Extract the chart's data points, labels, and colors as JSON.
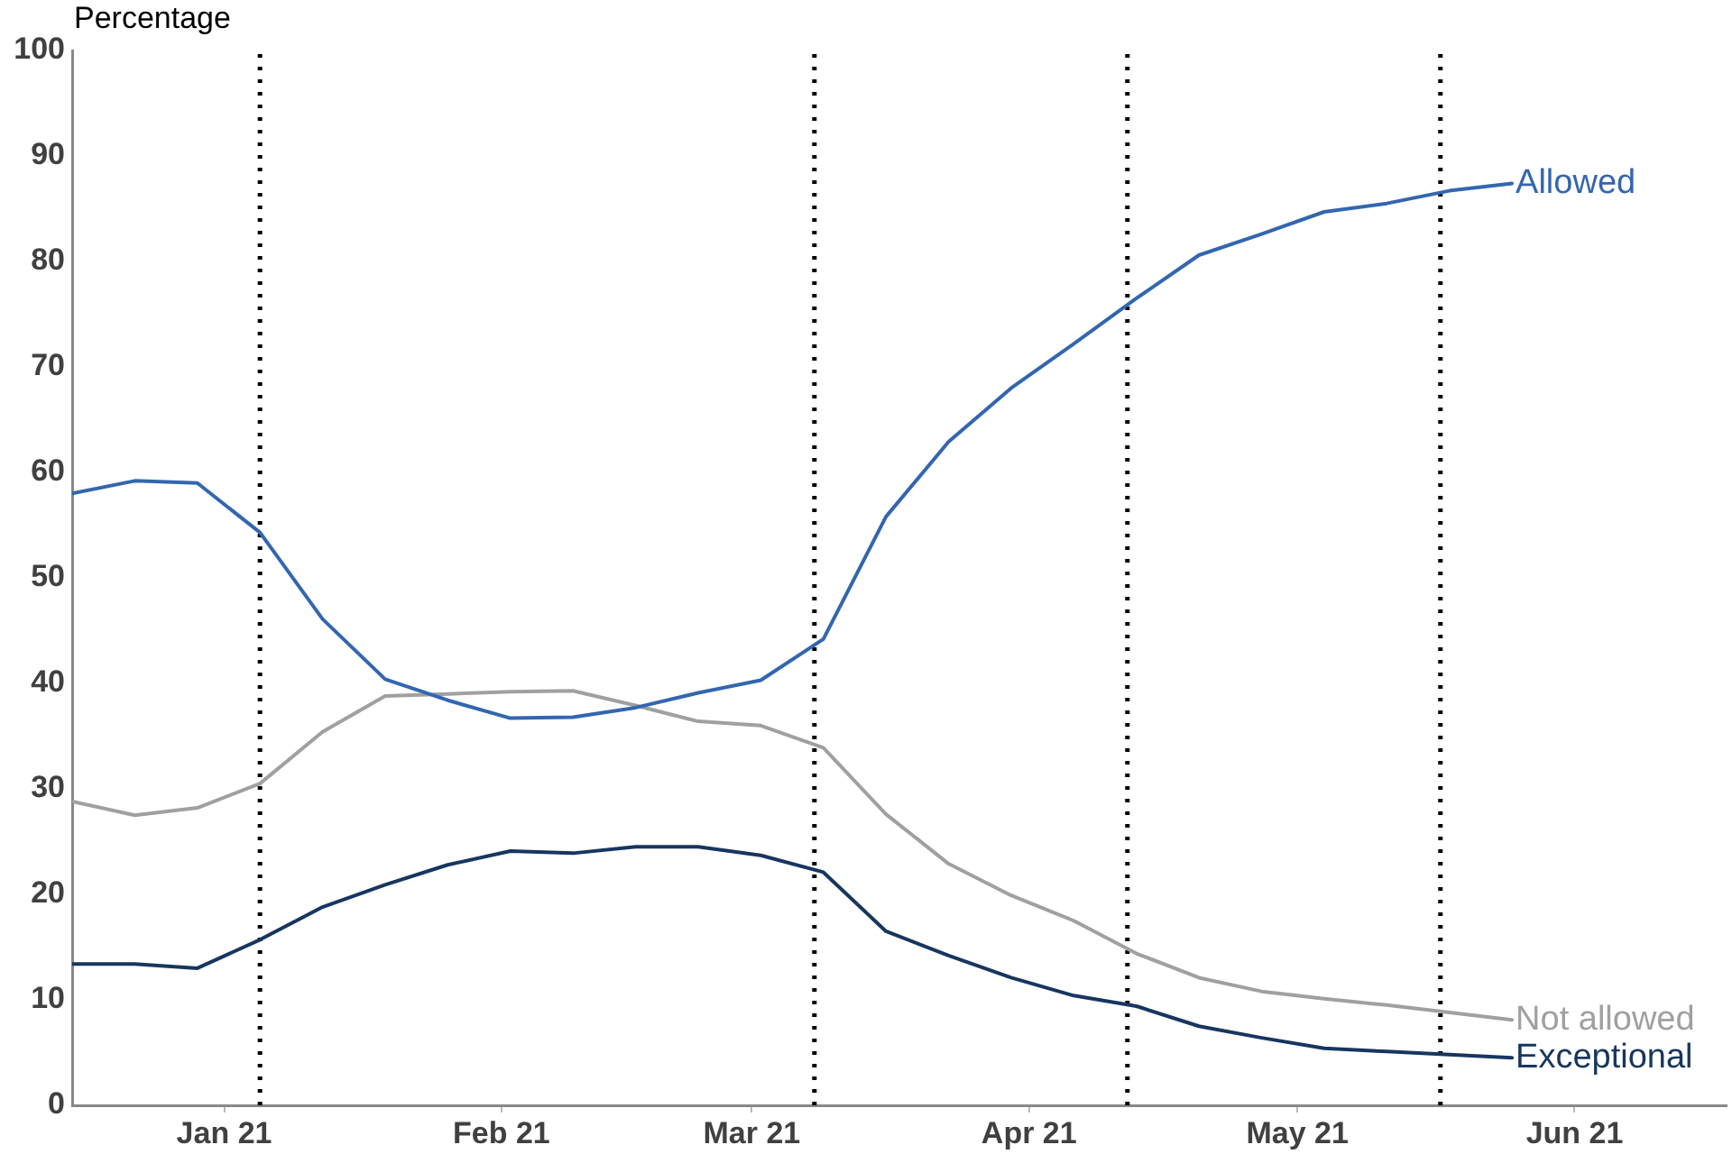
{
  "chart_data": {
    "type": "line",
    "ylabel": "Percentage",
    "x": [
      "2020-12-15",
      "2020-12-22",
      "2020-12-29",
      "2021-01-05",
      "2021-01-12",
      "2021-01-19",
      "2021-01-26",
      "2021-02-02",
      "2021-02-09",
      "2021-02-16",
      "2021-02-23",
      "2021-03-02",
      "2021-03-09",
      "2021-03-16",
      "2021-03-23",
      "2021-03-30",
      "2021-04-06",
      "2021-04-13",
      "2021-04-20",
      "2021-04-27",
      "2021-05-04",
      "2021-05-11",
      "2021-05-18",
      "2021-05-25"
    ],
    "xlim": [
      "2020-12-15",
      "2021-06-18"
    ],
    "xticks": [
      {
        "value": "2021-01-01",
        "label": "Jan 21"
      },
      {
        "value": "2021-02-01",
        "label": "Feb 21"
      },
      {
        "value": "2021-03-01",
        "label": "Mar 21"
      },
      {
        "value": "2021-04-01",
        "label": "Apr 21"
      },
      {
        "value": "2021-05-01",
        "label": "May 21"
      },
      {
        "value": "2021-06-01",
        "label": "Jun 21"
      }
    ],
    "ylim": [
      0,
      100
    ],
    "yticks": [
      0,
      10,
      20,
      30,
      40,
      50,
      60,
      70,
      80,
      90,
      100
    ],
    "grid": false,
    "legend": false,
    "marker": "none",
    "line_style": "solid",
    "series": [
      {
        "name": "Allowed",
        "color": "#3366b0",
        "values": [
          58.0,
          59.2,
          59.0,
          54.3,
          46.1,
          40.4,
          38.4,
          36.7,
          36.8,
          37.7,
          39.1,
          40.3,
          44.2,
          55.8,
          62.9,
          68.0,
          72.2,
          76.5,
          80.6,
          82.6,
          84.7,
          85.5,
          86.7,
          87.4
        ]
      },
      {
        "name": "Not allowed",
        "color": "#a0a0a0",
        "values": [
          28.8,
          27.5,
          28.2,
          30.5,
          35.4,
          38.8,
          39.0,
          39.2,
          39.3,
          37.9,
          36.4,
          36.0,
          33.9,
          27.6,
          22.9,
          19.9,
          17.5,
          14.4,
          12.1,
          10.8,
          10.1,
          9.5,
          8.8,
          8.1
        ]
      },
      {
        "name": "Exceptional",
        "color": "#17365f",
        "values": [
          13.4,
          13.4,
          13.0,
          15.7,
          18.8,
          20.9,
          22.8,
          24.1,
          23.9,
          24.5,
          24.5,
          23.7,
          22.1,
          16.5,
          14.2,
          12.1,
          10.4,
          9.4,
          7.5,
          6.4,
          5.4,
          5.1,
          4.8,
          4.5
        ]
      }
    ],
    "ref_lines": [
      {
        "axis": "x",
        "value": "2021-01-05",
        "color": "#000000",
        "line_style": "dotted"
      },
      {
        "axis": "x",
        "value": "2021-03-08",
        "color": "#000000",
        "line_style": "dotted"
      },
      {
        "axis": "x",
        "value": "2021-04-12",
        "color": "#000000",
        "line_style": "dotted"
      },
      {
        "axis": "x",
        "value": "2021-05-17",
        "color": "#000000",
        "line_style": "dotted"
      }
    ]
  }
}
